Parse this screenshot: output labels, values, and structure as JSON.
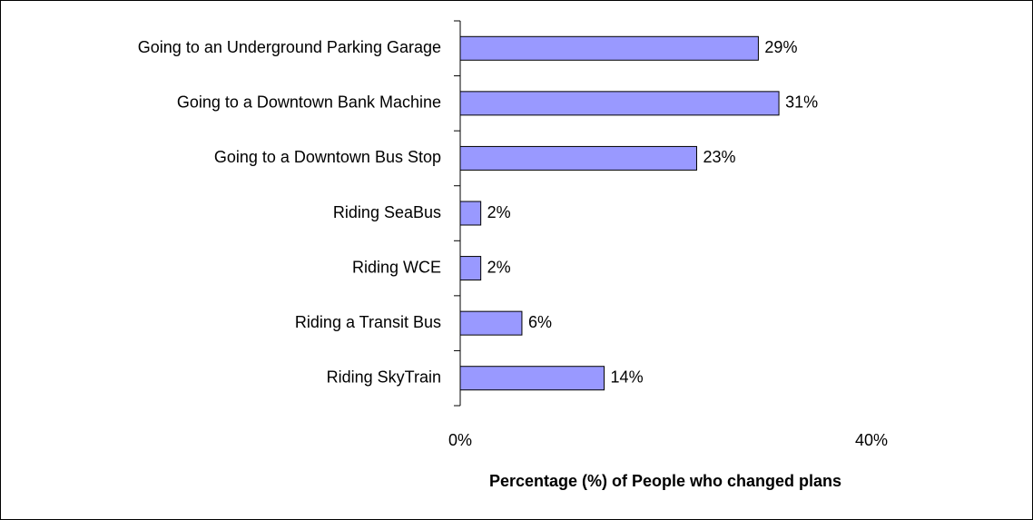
{
  "chart_data": {
    "type": "hbar",
    "categories": [
      "Going to an Underground Parking Garage",
      "Going to a Downtown Bank Machine",
      "Going to a Downtown Bus Stop",
      "Riding SeaBus",
      "Riding WCE",
      "Riding a Transit Bus",
      "Riding SkyTrain"
    ],
    "values": [
      29,
      31,
      23,
      2,
      2,
      6,
      14
    ],
    "value_labels": [
      "29%",
      "31%",
      "23%",
      "2%",
      "2%",
      "6%",
      "14%"
    ],
    "color": "#9999ff",
    "xlim": [
      0,
      40
    ],
    "xticks": [
      {
        "value": 0,
        "label": "0%"
      },
      {
        "value": 40,
        "label": "40%"
      }
    ],
    "xlabel": "Percentage (%) of People who changed plans"
  }
}
